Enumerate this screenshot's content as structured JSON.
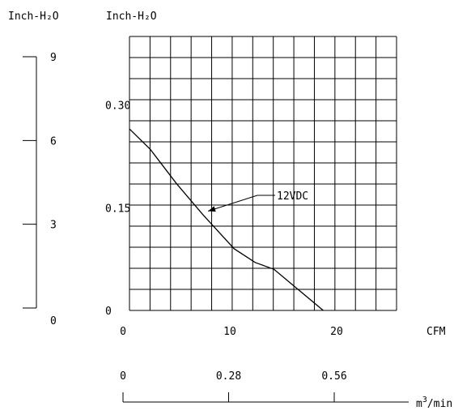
{
  "chart_data": {
    "type": "line",
    "left_axis": {
      "label": "Inch-H₂O",
      "ticks": [
        "9",
        "6",
        "3",
        "0"
      ],
      "ylim": [
        0,
        9
      ]
    },
    "plot": {
      "ylabel": "Inch-H₂O",
      "y_ticks": [
        "0.30",
        "0.15",
        "0"
      ],
      "ylim": [
        0,
        0.4
      ],
      "x_ticks": [
        "0",
        "10",
        "20"
      ],
      "xlabel": "CFM",
      "xlim": [
        0,
        25.5
      ],
      "grid": true
    },
    "bottom_axis": {
      "ticks": [
        "0",
        "0.28",
        "0.56"
      ],
      "label_prefix": "m",
      "label_sup": "3",
      "label_suffix": "/min"
    },
    "series": [
      {
        "name": "12VDC",
        "x": [
          0,
          2,
          4.5,
          7,
          10,
          12,
          13.8,
          18.5
        ],
        "y": [
          0.265,
          0.235,
          0.185,
          0.14,
          0.09,
          0.07,
          0.06,
          0
        ]
      }
    ],
    "annotation": {
      "text": "12VDC",
      "points_to": {
        "x": 7.5,
        "y": 0.145
      }
    }
  }
}
